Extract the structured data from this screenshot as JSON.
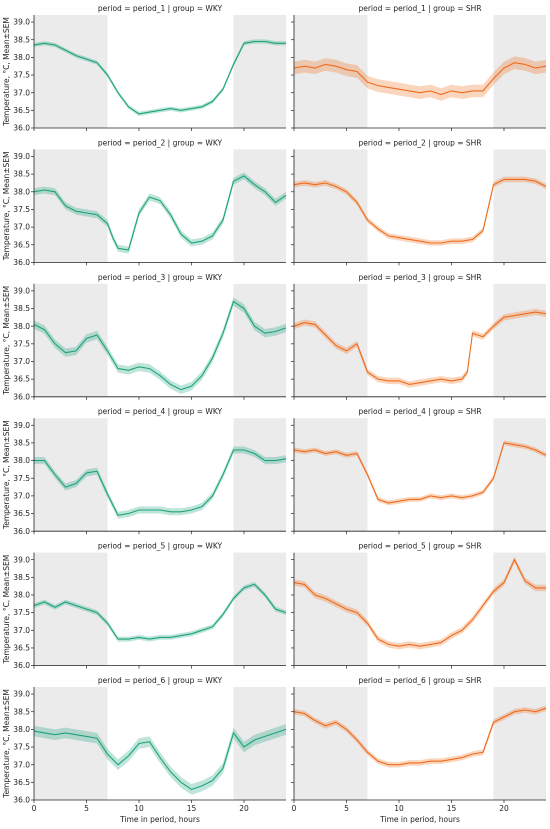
{
  "figure": {
    "xlabel": "Time in period, hours",
    "ylabel": "Temperature, °C, Mean±SEM"
  },
  "colors": {
    "WKY": "#1aa37a",
    "SHR": "#f06a1a",
    "dark_phase_shade": "#ebebeb",
    "axis": "#222222"
  },
  "chart_data": {
    "type": "line",
    "layout": "facet grid, 6 rows (period) × 2 columns (group)",
    "x_range": [
      0,
      24
    ],
    "x_ticks": [
      0,
      5,
      10,
      15,
      20
    ],
    "y_range": [
      36.0,
      39.2
    ],
    "y_ticks": [
      "36.0",
      "36.5",
      "37.0",
      "37.5",
      "38.0",
      "38.5",
      "39.0"
    ],
    "shaded_intervals": [
      [
        0,
        7
      ],
      [
        19,
        24
      ]
    ],
    "band": "Mean±SEM",
    "panels": [
      {
        "title": "period = period_1 | group = WKY",
        "group": "WKY",
        "x": [
          0,
          1,
          2,
          3,
          4,
          5,
          6,
          7,
          8,
          9,
          10,
          11,
          12,
          13,
          14,
          15,
          16,
          17,
          18,
          19,
          20,
          21,
          22,
          23,
          24
        ],
        "y": [
          38.35,
          38.4,
          38.35,
          38.2,
          38.05,
          37.95,
          37.85,
          37.5,
          37.0,
          36.6,
          36.4,
          36.45,
          36.5,
          36.55,
          36.5,
          36.55,
          36.6,
          36.75,
          37.1,
          37.8,
          38.4,
          38.45,
          38.45,
          38.4,
          38.4
        ],
        "sem": 0.06
      },
      {
        "title": "period = period_1 | group = SHR",
        "group": "SHR",
        "x": [
          0,
          1,
          2,
          3,
          4,
          5,
          6,
          7,
          8,
          9,
          10,
          11,
          12,
          13,
          14,
          15,
          16,
          17,
          18,
          19,
          20,
          21,
          22,
          23,
          24
        ],
        "y": [
          37.7,
          37.75,
          37.7,
          37.8,
          37.75,
          37.65,
          37.6,
          37.3,
          37.2,
          37.15,
          37.1,
          37.05,
          37.0,
          37.05,
          36.95,
          37.05,
          37.0,
          37.05,
          37.05,
          37.4,
          37.7,
          37.85,
          37.8,
          37.7,
          37.75
        ],
        "sem": 0.18
      },
      {
        "title": "period = period_2 | group = WKY",
        "group": "WKY",
        "x": [
          0,
          1,
          2,
          3,
          4,
          5,
          6,
          7,
          7.5,
          8,
          9,
          10,
          11,
          12,
          13,
          14,
          15,
          16,
          17,
          18,
          19,
          20,
          21,
          22,
          23,
          24
        ],
        "y": [
          38.0,
          38.05,
          38.0,
          37.6,
          37.45,
          37.4,
          37.35,
          37.1,
          36.7,
          36.4,
          36.35,
          37.4,
          37.85,
          37.75,
          37.35,
          36.8,
          36.55,
          36.6,
          36.75,
          37.2,
          38.3,
          38.45,
          38.2,
          38.0,
          37.7,
          37.9
        ],
        "sem": 0.1
      },
      {
        "title": "period = period_2 | group = SHR",
        "group": "SHR",
        "x": [
          0,
          1,
          2,
          3,
          4,
          5,
          6,
          7,
          8,
          9,
          10,
          11,
          12,
          13,
          14,
          15,
          16,
          17,
          18,
          19,
          20,
          21,
          22,
          23,
          24
        ],
        "y": [
          38.2,
          38.25,
          38.2,
          38.25,
          38.15,
          38.0,
          37.7,
          37.2,
          36.95,
          36.75,
          36.7,
          36.65,
          36.6,
          36.55,
          36.55,
          36.6,
          36.6,
          36.65,
          36.9,
          38.2,
          38.35,
          38.35,
          38.35,
          38.3,
          38.15
        ],
        "sem": 0.08
      },
      {
        "title": "period = period_3 | group = WKY",
        "group": "WKY",
        "x": [
          0,
          1,
          2,
          3,
          4,
          5,
          6,
          7,
          8,
          9,
          10,
          11,
          12,
          13,
          14,
          15,
          16,
          17,
          18,
          19,
          20,
          21,
          22,
          23,
          24
        ],
        "y": [
          38.05,
          37.9,
          37.5,
          37.25,
          37.3,
          37.65,
          37.75,
          37.3,
          36.8,
          36.75,
          36.85,
          36.8,
          36.6,
          36.35,
          36.2,
          36.3,
          36.6,
          37.1,
          37.8,
          38.7,
          38.5,
          38.0,
          37.8,
          37.85,
          37.95
        ],
        "sem": 0.12
      },
      {
        "title": "period = period_3 | group = SHR",
        "group": "SHR",
        "x": [
          0,
          1,
          2,
          3,
          4,
          5,
          6,
          7,
          8,
          9,
          10,
          11,
          12,
          13,
          14,
          15,
          16,
          16.5,
          17,
          18,
          19,
          20,
          21,
          22,
          23,
          24
        ],
        "y": [
          38.0,
          38.1,
          38.05,
          37.75,
          37.45,
          37.3,
          37.5,
          36.7,
          36.5,
          36.45,
          36.45,
          36.35,
          36.4,
          36.45,
          36.5,
          36.45,
          36.5,
          36.7,
          37.8,
          37.7,
          38.0,
          38.25,
          38.3,
          38.35,
          38.4,
          38.35
        ],
        "sem": 0.09
      },
      {
        "title": "period = period_4 | group = WKY",
        "group": "WKY",
        "x": [
          0,
          1,
          2,
          3,
          4,
          5,
          6,
          7,
          8,
          9,
          10,
          11,
          12,
          13,
          14,
          15,
          16,
          17,
          18,
          19,
          20,
          21,
          22,
          23,
          24
        ],
        "y": [
          38.0,
          38.0,
          37.6,
          37.25,
          37.35,
          37.65,
          37.7,
          37.05,
          36.45,
          36.5,
          36.6,
          36.6,
          36.6,
          36.55,
          36.55,
          36.6,
          36.7,
          37.0,
          37.6,
          38.3,
          38.3,
          38.2,
          38.0,
          38.0,
          38.05
        ],
        "sem": 0.1
      },
      {
        "title": "period = period_4 | group = SHR",
        "group": "SHR",
        "x": [
          0,
          1,
          2,
          3,
          4,
          5,
          6,
          7,
          8,
          9,
          10,
          11,
          12,
          13,
          14,
          15,
          16,
          17,
          18,
          19,
          20,
          21,
          22,
          23,
          24
        ],
        "y": [
          38.3,
          38.25,
          38.3,
          38.2,
          38.25,
          38.15,
          38.2,
          37.6,
          36.9,
          36.8,
          36.85,
          36.9,
          36.9,
          37.0,
          36.95,
          37.0,
          36.95,
          37.0,
          37.1,
          37.5,
          38.5,
          38.45,
          38.4,
          38.3,
          38.15
        ],
        "sem": 0.07
      },
      {
        "title": "period = period_5 | group = WKY",
        "group": "WKY",
        "x": [
          0,
          1,
          2,
          3,
          4,
          5,
          6,
          7,
          8,
          9,
          10,
          11,
          12,
          13,
          14,
          15,
          16,
          17,
          18,
          19,
          20,
          21,
          22,
          23,
          24
        ],
        "y": [
          37.7,
          37.8,
          37.65,
          37.8,
          37.7,
          37.6,
          37.5,
          37.2,
          36.75,
          36.75,
          36.8,
          36.75,
          36.8,
          36.8,
          36.85,
          36.9,
          37.0,
          37.1,
          37.45,
          37.9,
          38.2,
          38.3,
          38.0,
          37.6,
          37.5
        ],
        "sem": 0.07
      },
      {
        "title": "period = period_5 | group = SHR",
        "group": "SHR",
        "x": [
          0,
          1,
          2,
          3,
          4,
          5,
          6,
          7,
          8,
          9,
          10,
          11,
          12,
          13,
          14,
          15,
          16,
          17,
          18,
          19,
          20,
          21,
          22,
          23,
          24
        ],
        "y": [
          38.35,
          38.3,
          38.0,
          37.9,
          37.75,
          37.6,
          37.5,
          37.2,
          36.75,
          36.6,
          36.55,
          36.6,
          36.55,
          36.6,
          36.65,
          36.85,
          37.0,
          37.3,
          37.7,
          38.1,
          38.35,
          39.0,
          38.4,
          38.2,
          38.2
        ],
        "sem": 0.09
      },
      {
        "title": "period = period_6 | group = WKY",
        "group": "WKY",
        "x": [
          0,
          1,
          2,
          3,
          4,
          5,
          6,
          7,
          8,
          9,
          10,
          11,
          12,
          13,
          14,
          15,
          16,
          17,
          18,
          19,
          20,
          21,
          22,
          23,
          24
        ],
        "y": [
          37.95,
          37.9,
          37.85,
          37.9,
          37.85,
          37.8,
          37.75,
          37.3,
          37.0,
          37.25,
          37.6,
          37.65,
          37.2,
          36.8,
          36.5,
          36.3,
          36.4,
          36.55,
          36.9,
          37.9,
          37.5,
          37.7,
          37.8,
          37.9,
          38.0
        ],
        "sem": 0.15
      },
      {
        "title": "period = period_6 | group = SHR",
        "group": "SHR",
        "x": [
          0,
          1,
          2,
          3,
          4,
          5,
          6,
          7,
          8,
          9,
          10,
          11,
          12,
          13,
          14,
          15,
          16,
          17,
          18,
          19,
          20,
          21,
          22,
          23,
          24
        ],
        "y": [
          38.5,
          38.45,
          38.25,
          38.1,
          38.2,
          38.0,
          37.7,
          37.35,
          37.1,
          37.0,
          37.0,
          37.05,
          37.05,
          37.1,
          37.1,
          37.15,
          37.2,
          37.3,
          37.35,
          38.2,
          38.35,
          38.5,
          38.55,
          38.5,
          38.6
        ],
        "sem": 0.08
      }
    ]
  }
}
